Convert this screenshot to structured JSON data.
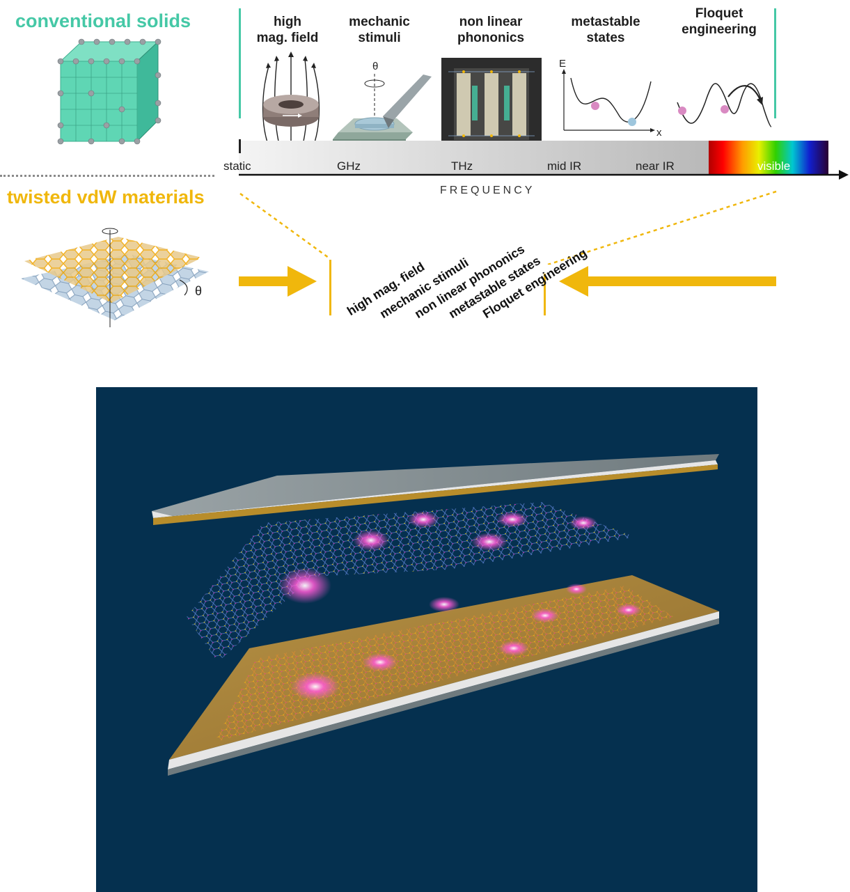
{
  "sections": {
    "conventional": "conventional solids",
    "twisted": "twisted vdW materials"
  },
  "categories": [
    {
      "line1": "high",
      "line2": "mag. field"
    },
    {
      "line1": "mechanic",
      "line2": "stimuli"
    },
    {
      "line1": "non linear",
      "line2": "phononics"
    },
    {
      "line1": "metastable",
      "line2": "states"
    },
    {
      "line1": "Floquet",
      "line2": "engineering"
    }
  ],
  "frequency_bands": [
    "static",
    "GHz",
    "THz",
    "mid IR",
    "near IR",
    "visible"
  ],
  "axis_label": "FREQUENCY",
  "rotated_labels": [
    "high mag. field",
    "mechanic stimuli",
    "non linear phononics",
    "metastable states",
    "Floquet engineering"
  ],
  "symbols": {
    "theta": "θ",
    "energy": "E",
    "position": "x"
  },
  "colors": {
    "teal": "#45c8a6",
    "gold": "#f0b70c",
    "navy": "#05304f",
    "substrate": "#c9a14a"
  }
}
